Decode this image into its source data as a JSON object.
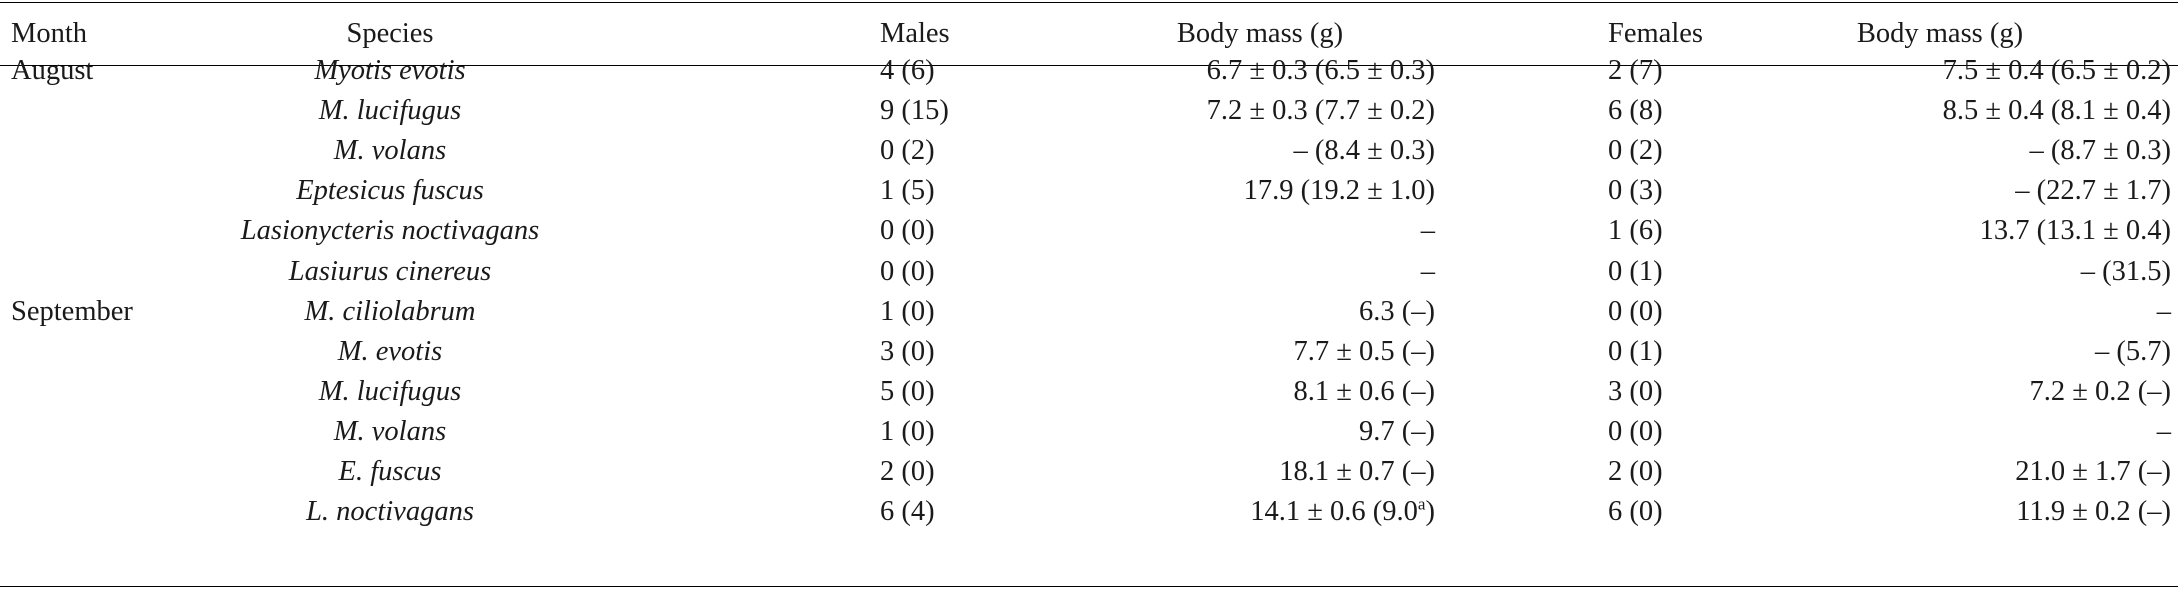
{
  "table": {
    "headers": {
      "month": "Month",
      "species": "Species",
      "males": "Males",
      "male_body_mass": "Body mass (g)",
      "females": "Females",
      "female_body_mass": "Body mass (g)"
    },
    "rows": [
      {
        "month": "August",
        "species": "Myotis evotis",
        "males": "4 (6)",
        "male_mass": "6.7 ± 0.3 (6.5 ± 0.3)",
        "male_mass_sup": "",
        "male_mass_tail": "",
        "females": "2 (7)",
        "female_mass": "7.5 ± 0.4 (6.5 ± 0.2)"
      },
      {
        "month": "",
        "species": "M. lucifugus",
        "males": "9 (15)",
        "male_mass": "7.2 ± 0.3 (7.7 ± 0.2)",
        "male_mass_sup": "",
        "male_mass_tail": "",
        "females": "6 (8)",
        "female_mass": "8.5 ± 0.4 (8.1 ± 0.4)"
      },
      {
        "month": "",
        "species": "M. volans",
        "males": "0 (2)",
        "male_mass": "– (8.4 ± 0.3)",
        "male_mass_sup": "",
        "male_mass_tail": "",
        "females": "0 (2)",
        "female_mass": "– (8.7 ± 0.3)"
      },
      {
        "month": "",
        "species": "Eptesicus fuscus",
        "males": "1 (5)",
        "male_mass": "17.9 (19.2 ± 1.0)",
        "male_mass_sup": "",
        "male_mass_tail": "",
        "females": "0 (3)",
        "female_mass": "– (22.7 ± 1.7)"
      },
      {
        "month": "",
        "species": "Lasionycteris noctivagans",
        "males": "0 (0)",
        "male_mass": "–",
        "male_mass_sup": "",
        "male_mass_tail": "",
        "females": "1 (6)",
        "female_mass": "13.7 (13.1 ± 0.4)"
      },
      {
        "month": "",
        "species": "Lasiurus cinereus",
        "males": "0 (0)",
        "male_mass": "–",
        "male_mass_sup": "",
        "male_mass_tail": "",
        "females": "0 (1)",
        "female_mass": "– (31.5)"
      },
      {
        "month": "September",
        "species": "M. ciliolabrum",
        "males": "1 (0)",
        "male_mass": "6.3 (–)",
        "male_mass_sup": "",
        "male_mass_tail": "",
        "females": "0 (0)",
        "female_mass": "–"
      },
      {
        "month": "",
        "species": "M. evotis",
        "males": "3 (0)",
        "male_mass": "7.7 ± 0.5 (–)",
        "male_mass_sup": "",
        "male_mass_tail": "",
        "females": "0 (1)",
        "female_mass": "– (5.7)"
      },
      {
        "month": "",
        "species": "M. lucifugus",
        "males": "5 (0)",
        "male_mass": "8.1 ± 0.6 (–)",
        "male_mass_sup": "",
        "male_mass_tail": "",
        "females": "3 (0)",
        "female_mass": "7.2 ± 0.2 (–)"
      },
      {
        "month": "",
        "species": "M. volans",
        "males": "1 (0)",
        "male_mass": "9.7 (–)",
        "male_mass_sup": "",
        "male_mass_tail": "",
        "females": "0 (0)",
        "female_mass": "–"
      },
      {
        "month": "",
        "species": "E. fuscus",
        "males": "2 (0)",
        "male_mass": "18.1 ± 0.7 (–)",
        "male_mass_sup": "",
        "male_mass_tail": "",
        "females": "2 (0)",
        "female_mass": "21.0 ± 1.7 (–)"
      },
      {
        "month": "",
        "species": "L. noctivagans",
        "males": "6 (4)",
        "male_mass": "14.1 ± 0.6 (9.0",
        "male_mass_sup": "a",
        "male_mass_tail": ")",
        "females": "6 (0)",
        "female_mass": "11.9 ± 0.2 (–)"
      }
    ]
  }
}
